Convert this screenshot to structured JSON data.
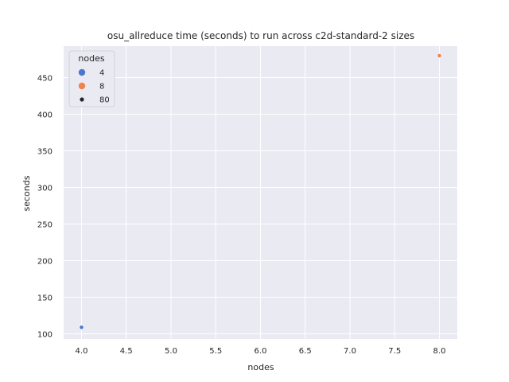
{
  "chart_data": {
    "type": "scatter",
    "title": "osu_allreduce time (seconds) to run across c2d-standard-2 sizes",
    "xlabel": "nodes",
    "ylabel": "seconds",
    "xlim": [
      3.8,
      8.2
    ],
    "ylim": [
      93,
      493
    ],
    "xticks": [
      4.0,
      4.5,
      5.0,
      5.5,
      6.0,
      6.5,
      7.0,
      7.5,
      8.0
    ],
    "xtick_labels": [
      "4.0",
      "4.5",
      "5.0",
      "5.5",
      "6.0",
      "6.5",
      "7.0",
      "7.5",
      "8.0"
    ],
    "yticks": [
      100,
      150,
      200,
      250,
      300,
      350,
      400,
      450
    ],
    "ytick_labels": [
      "100",
      "150",
      "200",
      "250",
      "300",
      "350",
      "400",
      "450"
    ],
    "grid": true,
    "legend_position": "top-left",
    "series": [
      {
        "name": "4",
        "color": "#4878d0",
        "x": [
          4
        ],
        "y": [
          109
        ]
      },
      {
        "name": "8",
        "color": "#ee854a",
        "x": [
          8
        ],
        "y": [
          480
        ]
      }
    ],
    "legend": {
      "title": "nodes",
      "hue_entries": [
        {
          "label": "4",
          "color": "#4878d0"
        },
        {
          "label": "8",
          "color": "#ee854a"
        }
      ],
      "size_entries": [
        {
          "label": "80",
          "color": "#262626"
        }
      ]
    },
    "colors": {
      "plot_background": "#eaeaf2",
      "grid": "#ffffff",
      "text": "#262626"
    }
  }
}
